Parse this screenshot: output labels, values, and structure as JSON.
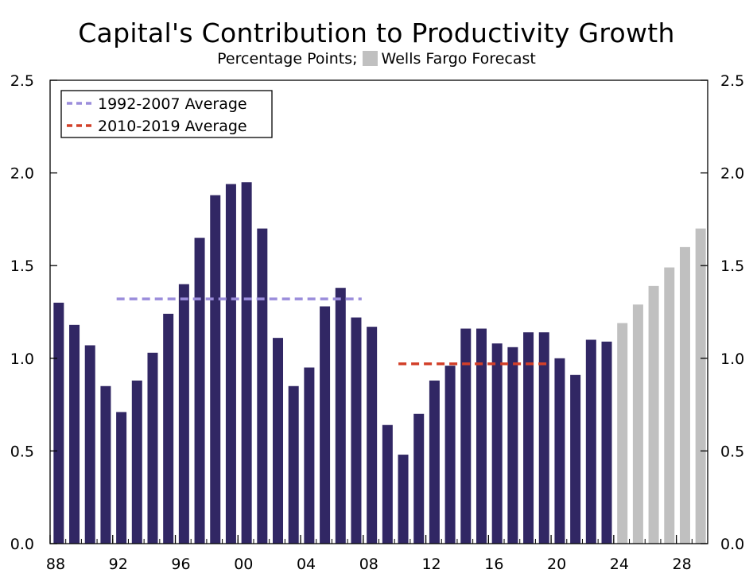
{
  "chart_data": {
    "type": "bar",
    "title": "Capital's Contribution to Productivity Growth",
    "subtitle_units": "Percentage Points;",
    "subtitle_forecast_label": "Wells Fargo Forecast",
    "xlabel": "",
    "ylabel": "",
    "ylim": [
      0,
      2.5
    ],
    "y_ticks": [
      "0.0",
      "0.5",
      "1.0",
      "1.5",
      "2.0",
      "2.5"
    ],
    "x_tick_labels": [
      {
        "year": 1988,
        "label": "88"
      },
      {
        "year": 1992,
        "label": "92"
      },
      {
        "year": 1996,
        "label": "96"
      },
      {
        "year": 2000,
        "label": "00"
      },
      {
        "year": 2004,
        "label": "04"
      },
      {
        "year": 2008,
        "label": "08"
      },
      {
        "year": 2012,
        "label": "12"
      },
      {
        "year": 2016,
        "label": "16"
      },
      {
        "year": 2020,
        "label": "20"
      },
      {
        "year": 2024,
        "label": "24"
      },
      {
        "year": 2028,
        "label": "28"
      }
    ],
    "years": [
      1988,
      1989,
      1990,
      1991,
      1992,
      1993,
      1994,
      1995,
      1996,
      1997,
      1998,
      1999,
      2000,
      2001,
      2002,
      2003,
      2004,
      2005,
      2006,
      2007,
      2008,
      2009,
      2010,
      2011,
      2012,
      2013,
      2014,
      2015,
      2016,
      2017,
      2018,
      2019,
      2020,
      2021,
      2022,
      2023,
      2024,
      2025,
      2026,
      2027,
      2028,
      2029
    ],
    "values": [
      1.3,
      1.18,
      1.07,
      0.85,
      0.71,
      0.88,
      1.03,
      1.24,
      1.4,
      1.65,
      1.88,
      1.94,
      1.95,
      1.7,
      1.11,
      0.85,
      0.95,
      1.28,
      1.38,
      1.22,
      1.17,
      0.64,
      0.48,
      0.7,
      0.88,
      0.96,
      1.16,
      1.16,
      1.08,
      1.06,
      1.14,
      1.14,
      1.0,
      0.91,
      1.1,
      1.09,
      1.19,
      1.29,
      1.39,
      1.49,
      1.6,
      1.7
    ],
    "forecast_start_year": 2024,
    "averages": [
      {
        "name": "1992-2007 Average",
        "start": 1992,
        "end": 2007,
        "value": 1.32,
        "color": "#9b8ddb"
      },
      {
        "name": "2010-2019 Average",
        "start": 2010,
        "end": 2019,
        "value": 0.97,
        "color": "#d2402a"
      }
    ],
    "colors": {
      "actual": "#312764",
      "forecast": "#c0c0c0"
    },
    "legend_position": "top-left",
    "grid": false
  }
}
